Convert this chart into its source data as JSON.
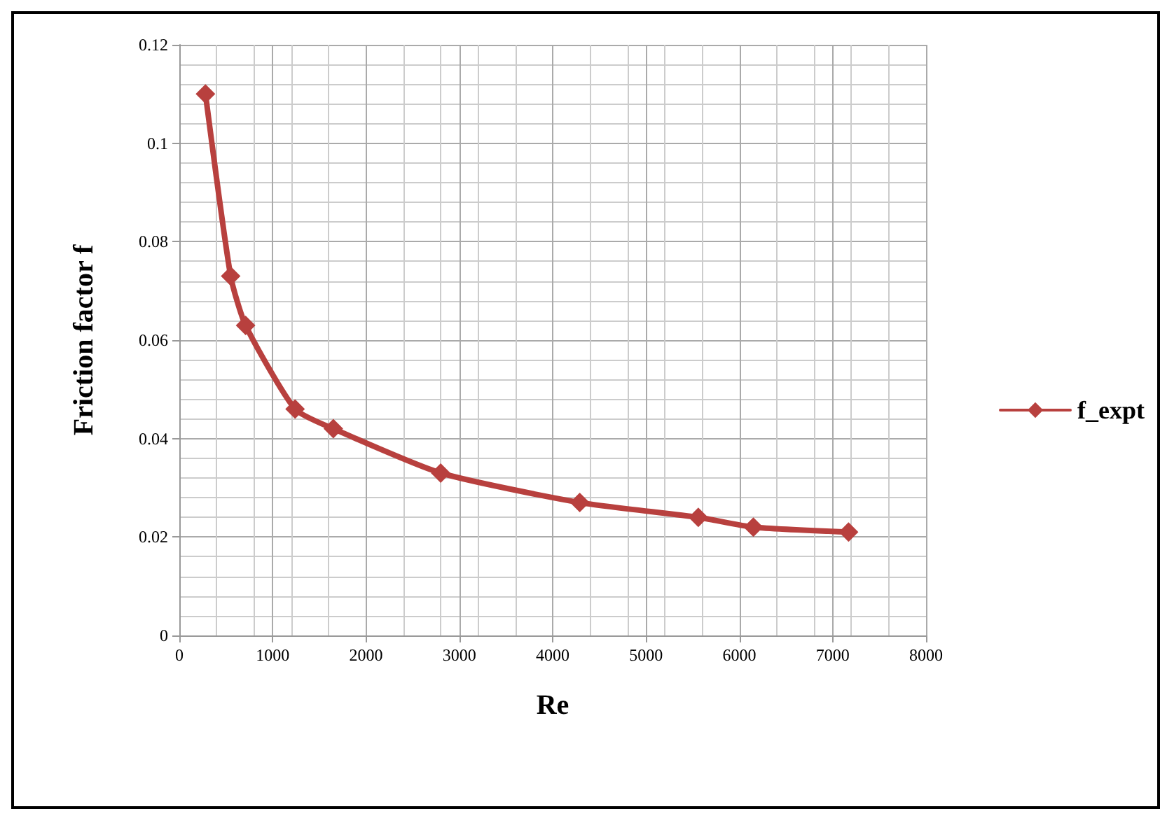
{
  "chart_data": {
    "type": "line",
    "xlabel": "Re",
    "ylabel": "Friction factor f",
    "x": [
      280,
      550,
      710,
      1240,
      1650,
      2800,
      4290,
      5560,
      6150,
      7170
    ],
    "series": [
      {
        "name": "f_expt",
        "color": "#b8403e",
        "values": [
          0.11,
          0.073,
          0.063,
          0.046,
          0.042,
          0.033,
          0.027,
          0.024,
          0.022,
          0.021
        ]
      }
    ],
    "xlim": [
      0,
      8000
    ],
    "xticks": [
      0,
      1000,
      2000,
      3000,
      4000,
      5000,
      6000,
      7000,
      8000
    ],
    "ylim": [
      0,
      0.12
    ],
    "yticks": [
      0,
      0.02,
      0.04,
      0.06,
      0.08,
      0.1,
      0.12
    ],
    "grid": true,
    "legend": "right",
    "marker": "diamond",
    "line_style": "solid"
  }
}
